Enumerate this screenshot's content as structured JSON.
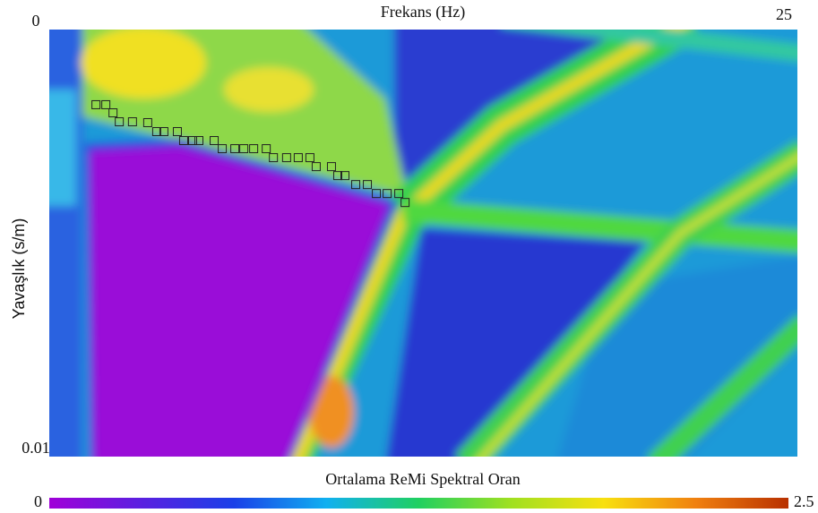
{
  "chart_data": {
    "type": "scatter",
    "x_label": "Frekans (Hz)",
    "y_label": "Yavaşlık (s/m)",
    "xlim": [
      0,
      25
    ],
    "xticks": [
      25
    ],
    "ylim": [
      0,
      0.01
    ],
    "yticks": [
      0,
      0.01
    ],
    "y_inverted": true,
    "marker": "square",
    "marker_color": "#222222",
    "x": [
      1.56,
      1.89,
      2.13,
      2.34,
      2.78,
      3.29,
      3.59,
      3.83,
      4.28,
      4.49,
      4.79,
      5.0,
      5.51,
      5.78,
      6.2,
      6.5,
      6.83,
      7.25,
      7.49,
      7.93,
      8.32,
      8.71,
      8.92,
      9.43,
      9.64,
      9.88,
      10.24,
      10.63,
      10.93,
      11.29,
      11.68,
      11.89
    ],
    "values": [
      0.00176,
      0.00176,
      0.00195,
      0.00216,
      0.00216,
      0.00218,
      0.00239,
      0.00239,
      0.00239,
      0.0026,
      0.0026,
      0.0026,
      0.0026,
      0.00279,
      0.00279,
      0.00279,
      0.00279,
      0.00279,
      0.003,
      0.003,
      0.003,
      0.003,
      0.00321,
      0.00321,
      0.00342,
      0.00342,
      0.00363,
      0.00363,
      0.00384,
      0.00384,
      0.00384,
      0.00405
    ],
    "colorbar": {
      "label": "Ortalama ReMi Spektral Oran",
      "lim": [
        0,
        2.5
      ],
      "ticks": [
        0,
        2.5
      ],
      "colors": [
        "#a000d8",
        "#5a20e0",
        "#1a40e8",
        "#10b0f0",
        "#20d060",
        "#a0e020",
        "#f8e010",
        "#f08010",
        "#b83000"
      ]
    }
  }
}
